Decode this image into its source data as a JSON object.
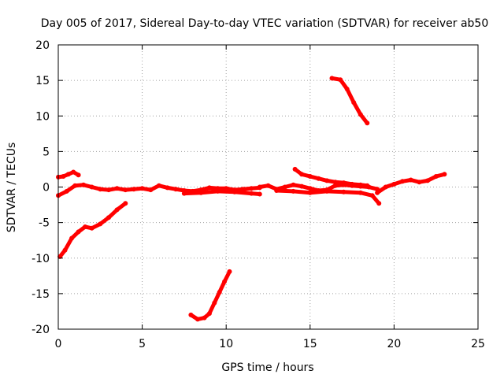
{
  "chart_data": {
    "type": "scatter",
    "title": "Day 005 of 2017, Sidereal Day-to-day VTEC variation (SDTVAR) for receiver ab50",
    "xlabel": "GPS time / hours",
    "ylabel": "SDTVAR / TECUs",
    "xlim": [
      0,
      25
    ],
    "ylim": [
      -20,
      20
    ],
    "xticks": [
      0,
      5,
      10,
      15,
      20,
      25
    ],
    "yticks": [
      -20,
      -15,
      -10,
      -5,
      0,
      5,
      10,
      15,
      20
    ],
    "grid": true,
    "series_color": "#ff0000",
    "series": [
      {
        "name": "upper-near-zero-early",
        "x": [
          0.0,
          0.3,
          0.6,
          0.9,
          1.2
        ],
        "y": [
          1.4,
          1.5,
          1.8,
          2.1,
          1.7
        ]
      },
      {
        "name": "near-zero-band-1",
        "x": [
          0.0,
          0.5,
          1.0,
          1.5,
          2.0,
          2.5,
          3.0,
          3.5,
          4.0,
          4.5,
          5.0,
          5.5,
          6.0,
          6.5,
          7.0,
          7.5,
          8.0,
          8.5,
          9.0,
          9.5,
          10.0,
          10.5,
          11.0,
          11.5,
          12.0
        ],
        "y": [
          -1.2,
          -0.6,
          0.2,
          0.3,
          0.0,
          -0.3,
          -0.4,
          -0.2,
          -0.4,
          -0.3,
          -0.2,
          -0.4,
          0.2,
          -0.1,
          -0.3,
          -0.5,
          -0.6,
          -0.4,
          -0.1,
          -0.2,
          -0.2,
          -0.4,
          -0.3,
          -0.2,
          -0.1
        ]
      },
      {
        "name": "near-zero-band-2",
        "x": [
          7.5,
          8.5,
          9.5,
          10.5,
          11.5,
          12.0
        ],
        "y": [
          -0.9,
          -0.8,
          -0.6,
          -0.7,
          -0.9,
          -1.0
        ]
      },
      {
        "name": "mid-near-zero-band",
        "x": [
          12.0,
          12.5,
          13.0,
          13.5,
          14.0,
          14.5,
          15.0,
          15.5,
          16.0,
          16.5,
          17.0,
          17.5,
          18.0,
          18.5,
          19.0
        ],
        "y": [
          0.0,
          0.2,
          -0.3,
          0.0,
          0.3,
          0.1,
          -0.2,
          -0.5,
          -0.4,
          0.2,
          0.3,
          0.2,
          0.1,
          0.0,
          -0.3
        ]
      },
      {
        "name": "mid-near-zero-upper",
        "x": [
          14.1,
          14.5,
          15.0,
          15.5,
          16.0,
          16.5,
          17.0,
          17.5,
          18.0,
          18.4
        ],
        "y": [
          2.5,
          1.8,
          1.5,
          1.2,
          0.9,
          0.7,
          0.6,
          0.4,
          0.3,
          0.2
        ]
      },
      {
        "name": "mid-near-zero-lower",
        "x": [
          13.0,
          14.0,
          15.0,
          16.0,
          17.0,
          18.0,
          18.7,
          19.1
        ],
        "y": [
          -0.5,
          -0.6,
          -0.8,
          -0.6,
          -0.7,
          -0.8,
          -1.2,
          -2.3
        ]
      },
      {
        "name": "late-near-zero-rise",
        "x": [
          19.0,
          19.5,
          20.0,
          20.5,
          21.0,
          21.5,
          22.0,
          22.5,
          23.0
        ],
        "y": [
          -0.8,
          0.0,
          0.4,
          0.8,
          1.0,
          0.7,
          0.9,
          1.5,
          1.8
        ]
      },
      {
        "name": "early-recovery-arc",
        "x": [
          0.1,
          0.4,
          0.8,
          1.2,
          1.6,
          2.0,
          2.5,
          3.0,
          3.5,
          4.0
        ],
        "y": [
          -9.8,
          -8.9,
          -7.2,
          -6.3,
          -5.6,
          -5.8,
          -5.2,
          -4.3,
          -3.2,
          -2.3
        ]
      },
      {
        "name": "high-descending-arc",
        "x": [
          16.3,
          16.8,
          17.2,
          17.6,
          18.0,
          18.4
        ],
        "y": [
          15.3,
          15.1,
          13.8,
          11.9,
          10.2,
          9.0
        ]
      },
      {
        "name": "low-rising-arc",
        "x": [
          7.9,
          8.3,
          8.7,
          9.0,
          9.3,
          9.6,
          9.9,
          10.2
        ],
        "y": [
          -18.0,
          -18.6,
          -18.4,
          -17.8,
          -16.3,
          -14.8,
          -13.3,
          -11.9
        ]
      }
    ]
  }
}
